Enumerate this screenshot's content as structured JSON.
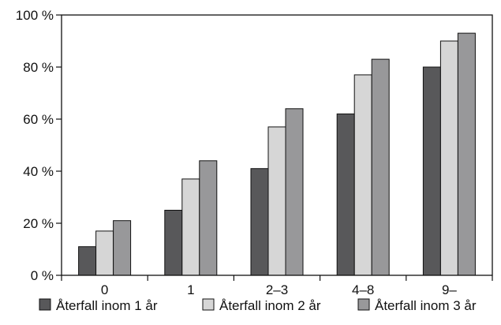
{
  "chart_data": {
    "type": "bar",
    "categories": [
      "0",
      "1",
      "2–3",
      "4–8",
      "9–"
    ],
    "series": [
      {
        "name": "Återfall inom 1 år",
        "values": [
          11,
          25,
          41,
          62,
          80
        ],
        "color": "#58585a"
      },
      {
        "name": "Återfall inom 2 år",
        "values": [
          17,
          37,
          57,
          77,
          90
        ],
        "color": "#d6d6d6"
      },
      {
        "name": "Återfall inom 3 år",
        "values": [
          21,
          44,
          64,
          83,
          93
        ],
        "color": "#98989a"
      }
    ],
    "ylim": [
      0,
      100
    ],
    "yticks": [
      0,
      20,
      40,
      60,
      80,
      100
    ],
    "ytick_labels": [
      "0 %",
      "20 %",
      "40 %",
      "60 %",
      "80 %",
      "100 %"
    ],
    "grid": false,
    "legend_position": "bottom"
  }
}
